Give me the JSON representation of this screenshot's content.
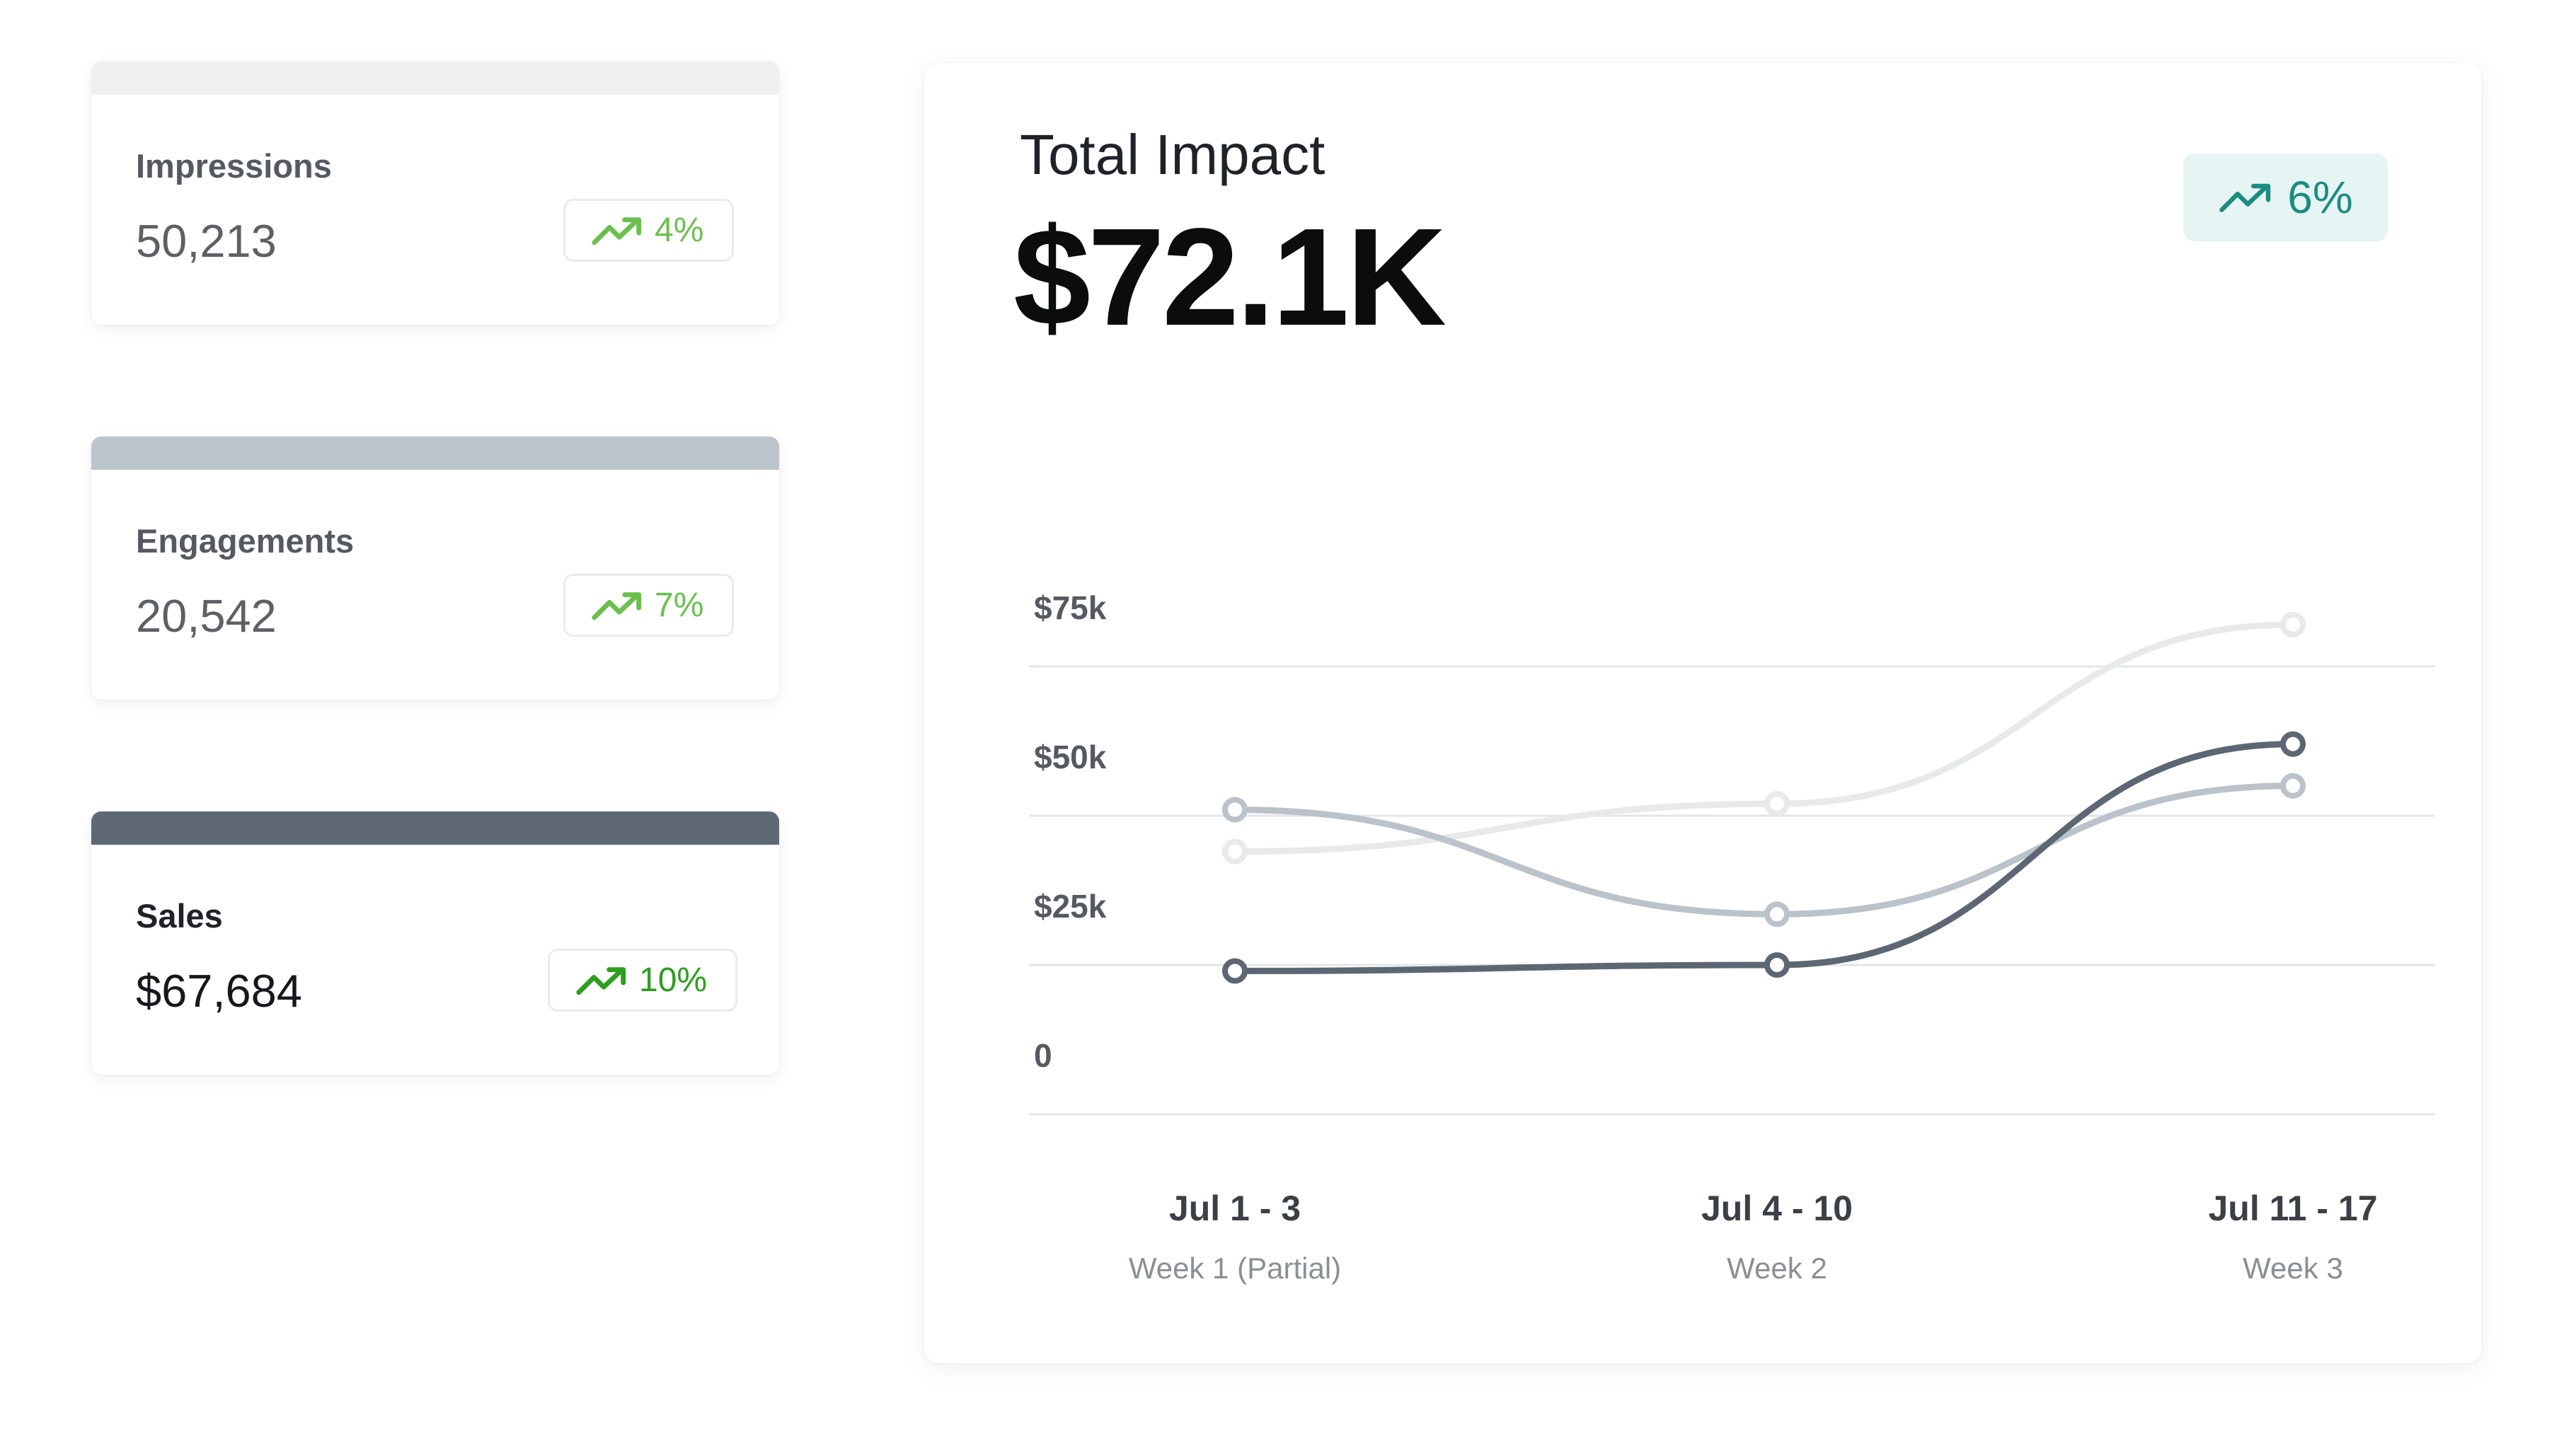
{
  "stats": [
    {
      "label": "Impressions",
      "value": "50,213",
      "change": "4%",
      "accent": "#eeeff1",
      "trend_color": "#6cbf4f"
    },
    {
      "label": "Engagements",
      "value": "20,542",
      "change": "7%",
      "accent": "#bcc4cc",
      "trend_color": "#6cbf4f"
    },
    {
      "label": "Sales",
      "value": "$67,684",
      "change": "10%",
      "accent": "#5f6976",
      "trend_color": "#2f9c22"
    }
  ],
  "main": {
    "title": "Total Impact",
    "total": "$72.1K",
    "change": "6%",
    "change_color": "#1c8c80",
    "trend_icon": "trending-up-icon"
  },
  "chart_data": {
    "type": "line",
    "categories": [
      "Jul 1 - 3",
      "Jul 4 - 10",
      "Jul 11 - 17"
    ],
    "sublabels": [
      "Week 1 (Partial)",
      "Week 2",
      "Week 3"
    ],
    "yticks": [
      "0",
      "$25k",
      "$50k",
      "$75k"
    ],
    "ylim": [
      0,
      75000
    ],
    "grid": true,
    "series": [
      {
        "values": [
          44000,
          52000,
          82000
        ],
        "color": "#e8e9eb"
      },
      {
        "values": [
          51000,
          33500,
          55000
        ],
        "color": "#bac2ca"
      },
      {
        "values": [
          24000,
          25000,
          62000
        ],
        "color": "#5d6773"
      }
    ]
  }
}
